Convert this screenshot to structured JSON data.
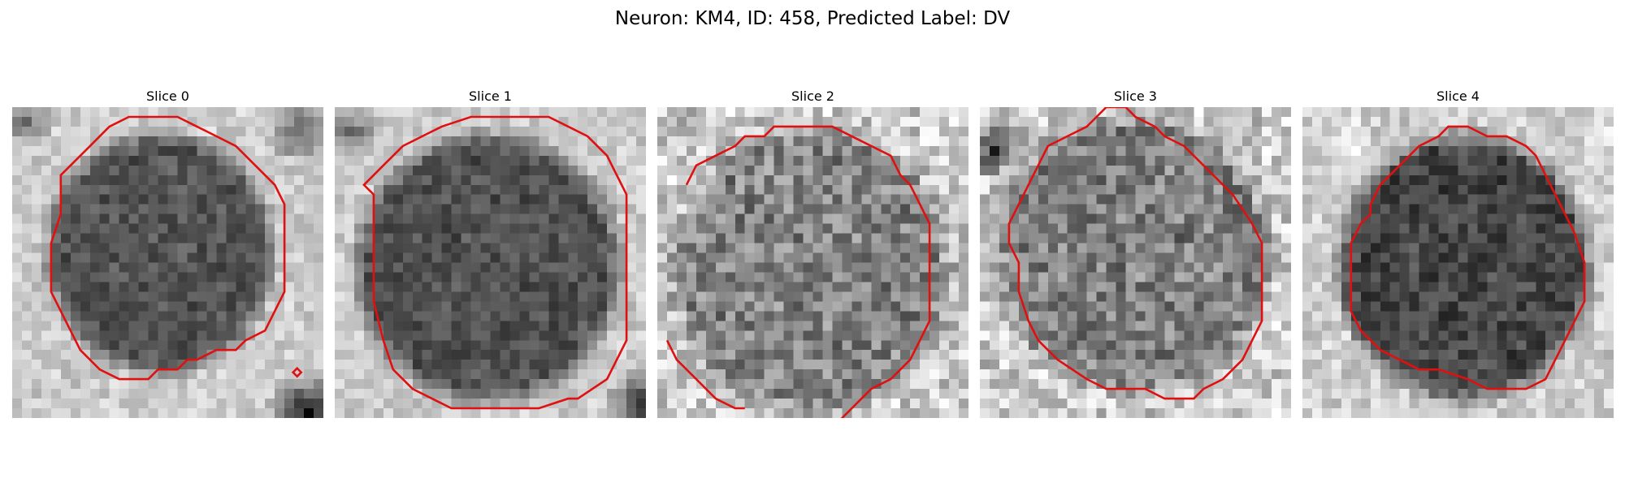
{
  "figure": {
    "title": "Neuron: KM4, ID: 458, Predicted Label: DV"
  },
  "colors": {
    "contour": "#e01010"
  },
  "slices": [
    {
      "label": "Slice 0"
    },
    {
      "label": "Slice 1"
    },
    {
      "label": "Slice 2"
    },
    {
      "label": "Slice 3"
    },
    {
      "label": "Slice 4"
    }
  ]
}
